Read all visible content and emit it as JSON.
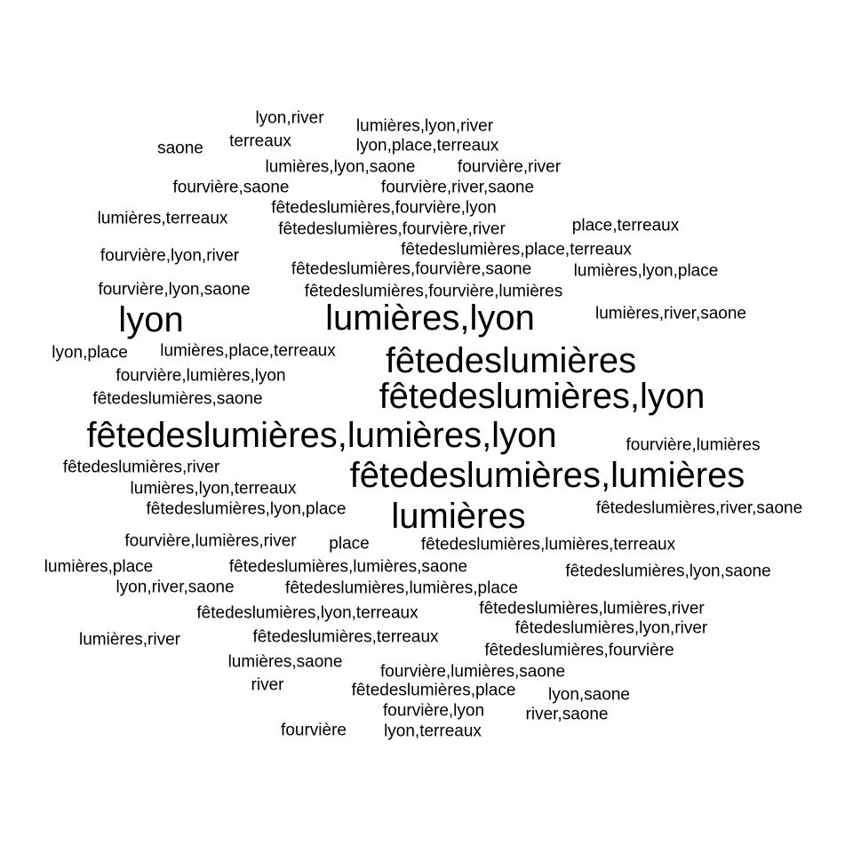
{
  "word_cloud": {
    "words": [
      {
        "text": "lyon,river",
        "weight": 1
      },
      {
        "text": "lumières,lyon,river",
        "weight": 1
      },
      {
        "text": "saone",
        "weight": 1
      },
      {
        "text": "terreaux",
        "weight": 1
      },
      {
        "text": "lyon,place,terreaux",
        "weight": 1
      },
      {
        "text": "lumières,lyon,saone",
        "weight": 1
      },
      {
        "text": "fourvière,river",
        "weight": 1
      },
      {
        "text": "fourvière,saone",
        "weight": 1
      },
      {
        "text": "fourvière,river,saone",
        "weight": 1
      },
      {
        "text": "lumières,terreaux",
        "weight": 1
      },
      {
        "text": "fêtedeslumières,fourvière,lyon",
        "weight": 1
      },
      {
        "text": "place,terreaux",
        "weight": 1
      },
      {
        "text": "fêtedeslumières,fourvière,river",
        "weight": 1
      },
      {
        "text": "fêtedeslumières,place,terreaux",
        "weight": 1
      },
      {
        "text": "fourvière,lyon,river",
        "weight": 1
      },
      {
        "text": "fêtedeslumières,fourvière,saone",
        "weight": 1
      },
      {
        "text": "lumières,lyon,place",
        "weight": 1
      },
      {
        "text": "fourvière,lyon,saone",
        "weight": 1
      },
      {
        "text": "fêtedeslumières,fourvière,lumières",
        "weight": 1
      },
      {
        "text": "lyon",
        "weight": 3
      },
      {
        "text": "lumières,lyon",
        "weight": 3
      },
      {
        "text": "lumières,river,saone",
        "weight": 1
      },
      {
        "text": "lyon,place",
        "weight": 1
      },
      {
        "text": "lumières,place,terreaux",
        "weight": 1
      },
      {
        "text": "fêtedeslumières",
        "weight": 3
      },
      {
        "text": "fourvière,lumières,lyon",
        "weight": 1
      },
      {
        "text": "fêtedeslumières,saone",
        "weight": 1
      },
      {
        "text": "fêtedeslumières,lyon",
        "weight": 3
      },
      {
        "text": "fêtedeslumières,lumières,lyon",
        "weight": 3
      },
      {
        "text": "fourvière,lumières",
        "weight": 1
      },
      {
        "text": "fêtedeslumières,river",
        "weight": 1
      },
      {
        "text": "fêtedeslumières,lumières",
        "weight": 3
      },
      {
        "text": "lumières,lyon,terreaux",
        "weight": 1
      },
      {
        "text": "fêtedeslumières,lyon,place",
        "weight": 1
      },
      {
        "text": "lumières",
        "weight": 3
      },
      {
        "text": "fêtedeslumières,river,saone",
        "weight": 1
      },
      {
        "text": "fourvière,lumières,river",
        "weight": 1
      },
      {
        "text": "place",
        "weight": 1
      },
      {
        "text": "fêtedeslumières,lumières,terreaux",
        "weight": 1
      },
      {
        "text": "lumières,place",
        "weight": 1
      },
      {
        "text": "fêtedeslumières,lumières,saone",
        "weight": 1
      },
      {
        "text": "fêtedeslumières,lyon,saone",
        "weight": 1
      },
      {
        "text": "lyon,river,saone",
        "weight": 1
      },
      {
        "text": "fêtedeslumières,lumières,place",
        "weight": 1
      },
      {
        "text": "fêtedeslumières,lyon,terreaux",
        "weight": 1
      },
      {
        "text": "fêtedeslumières,lumières,river",
        "weight": 1
      },
      {
        "text": "fêtedeslumières,lyon,river",
        "weight": 1
      },
      {
        "text": "lumières,river",
        "weight": 1
      },
      {
        "text": "fêtedeslumières,terreaux",
        "weight": 1
      },
      {
        "text": "fêtedeslumières,fourvière",
        "weight": 1
      },
      {
        "text": "lumières,saone",
        "weight": 1
      },
      {
        "text": "fourvière,lumières,saone",
        "weight": 1
      },
      {
        "text": "river",
        "weight": 1
      },
      {
        "text": "fêtedeslumières,place",
        "weight": 1
      },
      {
        "text": "lyon,saone",
        "weight": 1
      },
      {
        "text": "fourvière,lyon",
        "weight": 1
      },
      {
        "text": "river,saone",
        "weight": 1
      },
      {
        "text": "fourvière",
        "weight": 1
      },
      {
        "text": "lyon,terreaux",
        "weight": 1
      }
    ],
    "text_color": "#000000",
    "background": "#ffffff"
  }
}
